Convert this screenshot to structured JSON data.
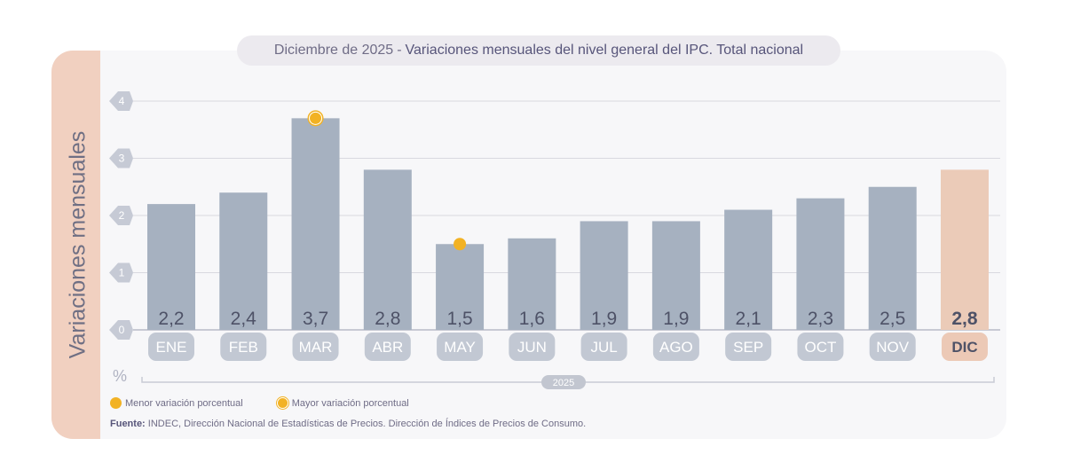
{
  "title": {
    "prefix": "Diciembre de 2025",
    "separator": "-",
    "main": "Variaciones mensuales del nivel general del IPC. Total nacional"
  },
  "legend": {
    "min_label": "Menor variación porcentual",
    "max_label": "Mayor variación porcentual"
  },
  "source": {
    "label": "Fuente:",
    "text": "INDEC, Dirección Nacional de Estadísticas de Precios. Dirección de Índices de Precios de Consumo."
  },
  "colors": {
    "bar": "#a6b1c0",
    "bar_highlight": "#ebcbb8",
    "marker": "#f2b224",
    "month_pill": "#c2c8d3",
    "month_pill_highlight": "#ecc9b6",
    "grid": "#d9d9e0",
    "axis_text": "#8a8a9c",
    "value_text": "#4e5267"
  },
  "chart_data": {
    "type": "bar",
    "title": "Variaciones mensuales del nivel general del IPC. Total nacional",
    "ylabel": "Variaciones mensuales",
    "yunit": "%",
    "xgroup_label": "2025",
    "ylim": [
      0,
      4
    ],
    "yticks": [
      "0",
      "1",
      "2",
      "3",
      "4"
    ],
    "grid": true,
    "categories": [
      "ENE",
      "FEB",
      "MAR",
      "ABR",
      "MAY",
      "JUN",
      "JUL",
      "AGO",
      "SEP",
      "OCT",
      "NOV",
      "DIC"
    ],
    "values": [
      2.2,
      2.4,
      3.7,
      2.8,
      1.5,
      1.6,
      1.9,
      1.9,
      2.1,
      2.3,
      2.5,
      2.8
    ],
    "value_labels": [
      "2,2",
      "2,4",
      "3,7",
      "2,8",
      "1,5",
      "1,6",
      "1,9",
      "1,9",
      "2,1",
      "2,3",
      "2,5",
      "2,8"
    ],
    "highlight_index": 11,
    "max_index": 2,
    "min_index": 4
  }
}
